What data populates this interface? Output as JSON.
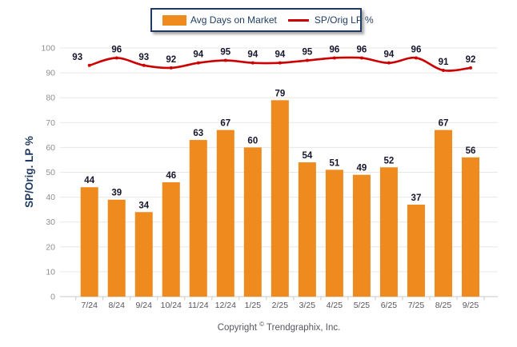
{
  "legend": {
    "items": [
      {
        "label": "Avg Days on Market",
        "marker": "bar-swatch",
        "color": "#EE8A1E"
      },
      {
        "label": "SP/Orig LP %",
        "marker": "line-swatch",
        "color": "#CC0000"
      }
    ]
  },
  "chart_data": {
    "type": "bar",
    "categories": [
      "7/24",
      "8/24",
      "9/24",
      "10/24",
      "11/24",
      "12/24",
      "1/25",
      "2/25",
      "3/25",
      "4/25",
      "5/25",
      "6/25",
      "7/25",
      "8/25",
      "9/25"
    ],
    "series": [
      {
        "name": "Avg Days on Market",
        "type": "bar",
        "color": "#EE8A1E",
        "values": [
          44,
          39,
          34,
          46,
          63,
          67,
          60,
          79,
          54,
          51,
          49,
          52,
          37,
          67,
          56
        ]
      },
      {
        "name": "SP/Orig LP %",
        "type": "line",
        "color": "#CC0000",
        "values": [
          93,
          96,
          93,
          92,
          94,
          95,
          94,
          94,
          95,
          96,
          96,
          94,
          96,
          91,
          92
        ]
      }
    ],
    "title": "",
    "xlabel": "",
    "ylabel": "SP/Orig. LP %",
    "ylim": [
      0,
      100
    ],
    "yticks": [
      0,
      10,
      20,
      30,
      40,
      50,
      60,
      70,
      80,
      90,
      100
    ],
    "grid": true,
    "legend_position": "top-center",
    "data_labels": true
  },
  "footer": {
    "copyright_prefix": "Copyright",
    "copyright_symbol": "©",
    "copyright_suffix": "Trendgraphix, Inc."
  },
  "colors": {
    "bar": "#EE8A1E",
    "line": "#CC0000",
    "data_label": "#16162C",
    "y_tick_label": "#8F8F8F",
    "x_tick_label": "#55555F",
    "y_axis_title": "#1F3A5F",
    "legend_border": "#1E3A64",
    "gridline": "#E7E7E7",
    "axis_line": "#C9C9C9",
    "background": "#FFFFFF"
  }
}
